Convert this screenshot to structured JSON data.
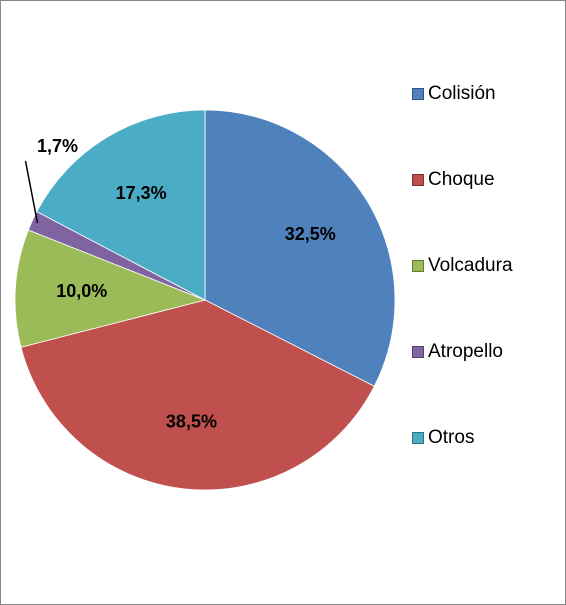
{
  "chart_data": {
    "type": "pie",
    "categories": [
      "Colisión",
      "Choque",
      "Volcadura",
      "Atropello",
      "Otros"
    ],
    "values": [
      32.5,
      38.5,
      10.0,
      1.7,
      17.3
    ],
    "value_labels": [
      "32,5%",
      "38,5%",
      "10,0%",
      "1,7%",
      "17,3%"
    ],
    "colors": [
      "#4f81bd",
      "#c0504d",
      "#9bbb59",
      "#8064a2",
      "#4bacc6"
    ],
    "legend": "right"
  }
}
